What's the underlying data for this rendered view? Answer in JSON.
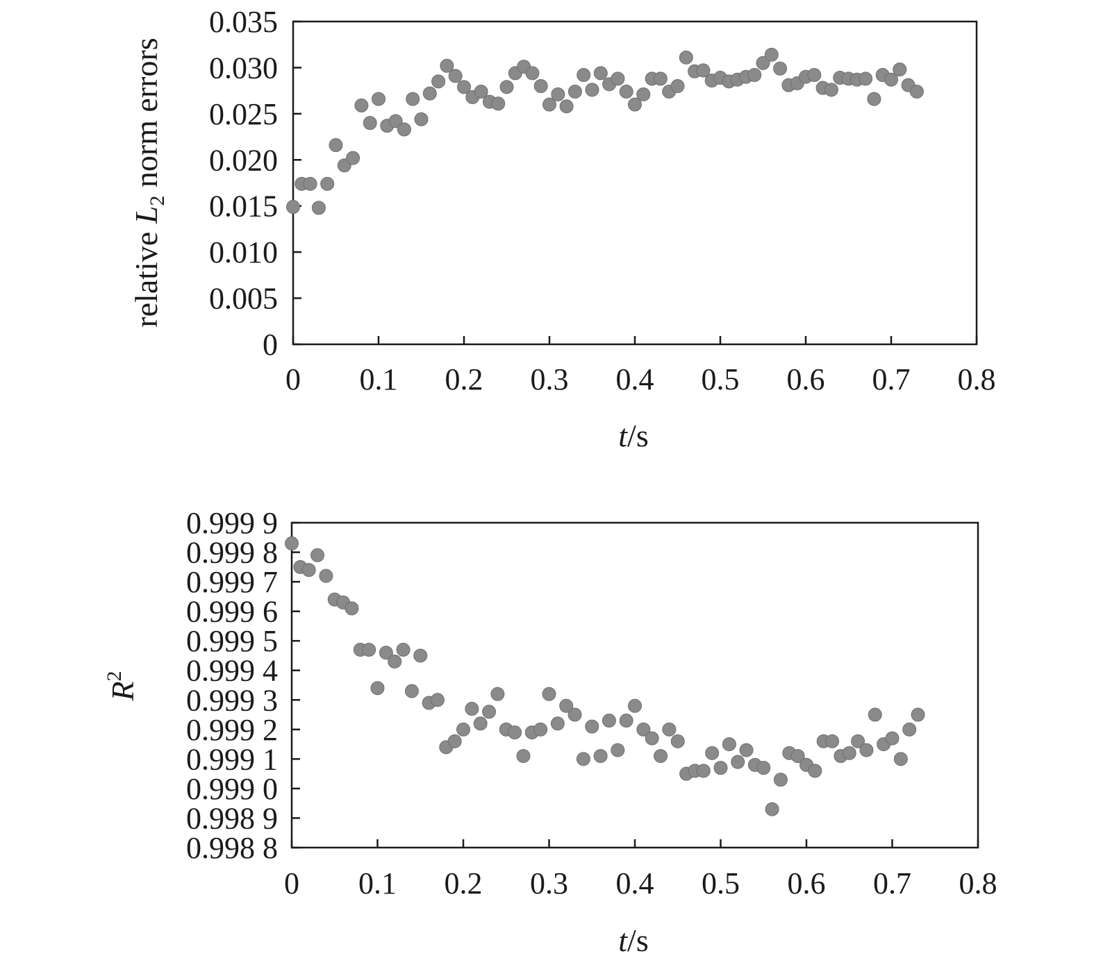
{
  "chart_data": [
    {
      "type": "scatter",
      "ylabel_parts": [
        "relative ",
        "L",
        "2",
        " norm errors"
      ],
      "xlabel_parts": [
        "t",
        "/s"
      ],
      "xlim": [
        0,
        0.8
      ],
      "ylim": [
        0,
        0.035
      ],
      "x_ticks": [
        "0",
        "0.1",
        "0.2",
        "0.3",
        "0.4",
        "0.5",
        "0.6",
        "0.7",
        "0.8"
      ],
      "y_ticks": [
        "0",
        "0.005",
        "0.010",
        "0.015",
        "0.020",
        "0.025",
        "0.030",
        "0.035"
      ],
      "marker_color": "#8a8a8a",
      "x": [
        0,
        0.01,
        0.02,
        0.03,
        0.04,
        0.05,
        0.06,
        0.07,
        0.08,
        0.09,
        0.1,
        0.11,
        0.12,
        0.13,
        0.14,
        0.15,
        0.16,
        0.17,
        0.18,
        0.19,
        0.2,
        0.21,
        0.22,
        0.23,
        0.24,
        0.25,
        0.26,
        0.27,
        0.28,
        0.29,
        0.3,
        0.31,
        0.32,
        0.33,
        0.34,
        0.35,
        0.36,
        0.37,
        0.38,
        0.39,
        0.4,
        0.41,
        0.42,
        0.43,
        0.44,
        0.45,
        0.46,
        0.47,
        0.48,
        0.49,
        0.5,
        0.51,
        0.52,
        0.53,
        0.54,
        0.55,
        0.56,
        0.57,
        0.58,
        0.59,
        0.6,
        0.61,
        0.62,
        0.63,
        0.64,
        0.65,
        0.66,
        0.67,
        0.68,
        0.69,
        0.7,
        0.71,
        0.72,
        0.73
      ],
      "y": [
        0.0149,
        0.0174,
        0.0174,
        0.0148,
        0.0174,
        0.0216,
        0.0194,
        0.0202,
        0.0259,
        0.024,
        0.0266,
        0.0237,
        0.0242,
        0.0233,
        0.0266,
        0.0244,
        0.0272,
        0.0285,
        0.0302,
        0.0291,
        0.0279,
        0.0268,
        0.0274,
        0.0263,
        0.0261,
        0.0279,
        0.0294,
        0.0301,
        0.0294,
        0.028,
        0.026,
        0.0271,
        0.0258,
        0.0274,
        0.0292,
        0.0276,
        0.0294,
        0.0282,
        0.0288,
        0.0274,
        0.026,
        0.0271,
        0.0288,
        0.0288,
        0.0274,
        0.028,
        0.0311,
        0.0296,
        0.0297,
        0.0286,
        0.0289,
        0.0285,
        0.0287,
        0.029,
        0.0292,
        0.0305,
        0.0314,
        0.0299,
        0.0281,
        0.0283,
        0.029,
        0.0292,
        0.0278,
        0.0276,
        0.0289,
        0.0288,
        0.0287,
        0.0288,
        0.0266,
        0.0292,
        0.0287,
        0.0298,
        0.0281,
        0.0274
      ]
    },
    {
      "type": "scatter",
      "ylabel_parts": [
        "R",
        "2"
      ],
      "xlabel_parts": [
        "t",
        "/s"
      ],
      "xlim": [
        0,
        0.8
      ],
      "ylim": [
        0.9988,
        0.9999
      ],
      "x_ticks": [
        "0",
        "0.1",
        "0.2",
        "0.3",
        "0.4",
        "0.5",
        "0.6",
        "0.7",
        "0.8"
      ],
      "y_ticks": [
        "0.998 8",
        "0.998 9",
        "0.999 0",
        "0.999 1",
        "0.999 2",
        "0.999 3",
        "0.999 4",
        "0.999 5",
        "0.999 6",
        "0.999 7",
        "0.999 8",
        "0.999 9"
      ],
      "marker_color": "#8a8a8a",
      "x": [
        0,
        0.01,
        0.02,
        0.03,
        0.04,
        0.05,
        0.06,
        0.07,
        0.08,
        0.09,
        0.1,
        0.11,
        0.12,
        0.13,
        0.14,
        0.15,
        0.16,
        0.17,
        0.18,
        0.19,
        0.2,
        0.21,
        0.22,
        0.23,
        0.24,
        0.25,
        0.26,
        0.27,
        0.28,
        0.29,
        0.3,
        0.31,
        0.32,
        0.33,
        0.34,
        0.35,
        0.36,
        0.37,
        0.38,
        0.39,
        0.4,
        0.41,
        0.42,
        0.43,
        0.44,
        0.45,
        0.46,
        0.47,
        0.48,
        0.49,
        0.5,
        0.51,
        0.52,
        0.53,
        0.54,
        0.55,
        0.56,
        0.57,
        0.58,
        0.59,
        0.6,
        0.61,
        0.62,
        0.63,
        0.64,
        0.65,
        0.66,
        0.67,
        0.68,
        0.69,
        0.7,
        0.71,
        0.72,
        0.73
      ],
      "y": [
        0.99983,
        0.99975,
        0.99974,
        0.99979,
        0.99972,
        0.99964,
        0.99963,
        0.99961,
        0.99947,
        0.99947,
        0.99934,
        0.99946,
        0.99943,
        0.99947,
        0.99933,
        0.99945,
        0.99929,
        0.9993,
        0.99914,
        0.99916,
        0.9992,
        0.99927,
        0.99922,
        0.99926,
        0.99932,
        0.9992,
        0.99919,
        0.99911,
        0.99919,
        0.9992,
        0.99932,
        0.99922,
        0.99928,
        0.99925,
        0.9991,
        0.99921,
        0.99911,
        0.99923,
        0.99913,
        0.99923,
        0.99928,
        0.9992,
        0.99917,
        0.99911,
        0.9992,
        0.99916,
        0.99905,
        0.99906,
        0.99906,
        0.99912,
        0.99907,
        0.99915,
        0.99909,
        0.99913,
        0.99908,
        0.99907,
        0.99893,
        0.99903,
        0.99912,
        0.99911,
        0.99908,
        0.99906,
        0.99916,
        0.99916,
        0.99911,
        0.99912,
        0.99916,
        0.99913,
        0.99925,
        0.99915,
        0.99917,
        0.9991,
        0.9992,
        0.99925
      ]
    }
  ]
}
